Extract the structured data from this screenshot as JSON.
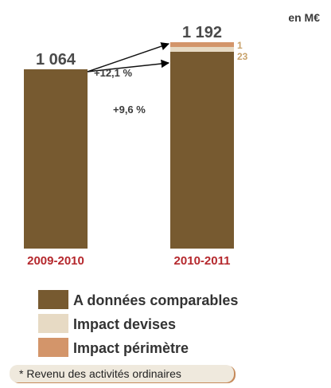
{
  "unit_label": "en M€",
  "footnote": "* Revenu des activités ordinaires",
  "colors": {
    "base": "#775a30",
    "devises": "#e7dac4",
    "perimetre": "#d3956a",
    "period": "#b5282d",
    "growth": "#3b3b3b",
    "increment": "#c8a26b"
  },
  "chart_data": {
    "type": "bar",
    "stacked": true,
    "categories": [
      "2009-2010",
      "2010-2011"
    ],
    "series": [
      {
        "name": "A données comparables",
        "values": [
          1064,
          1168
        ]
      },
      {
        "name": "Impact devises",
        "values": [
          0,
          23
        ]
      },
      {
        "name": "Impact périmètre",
        "values": [
          0,
          1
        ]
      }
    ],
    "totals": [
      "1 064",
      "1 192"
    ],
    "increment_labels": [
      "1",
      "23"
    ],
    "growth_labels": [
      "+12,1 %",
      "+9,6 %"
    ],
    "ylim": [
      0,
      1250
    ]
  }
}
